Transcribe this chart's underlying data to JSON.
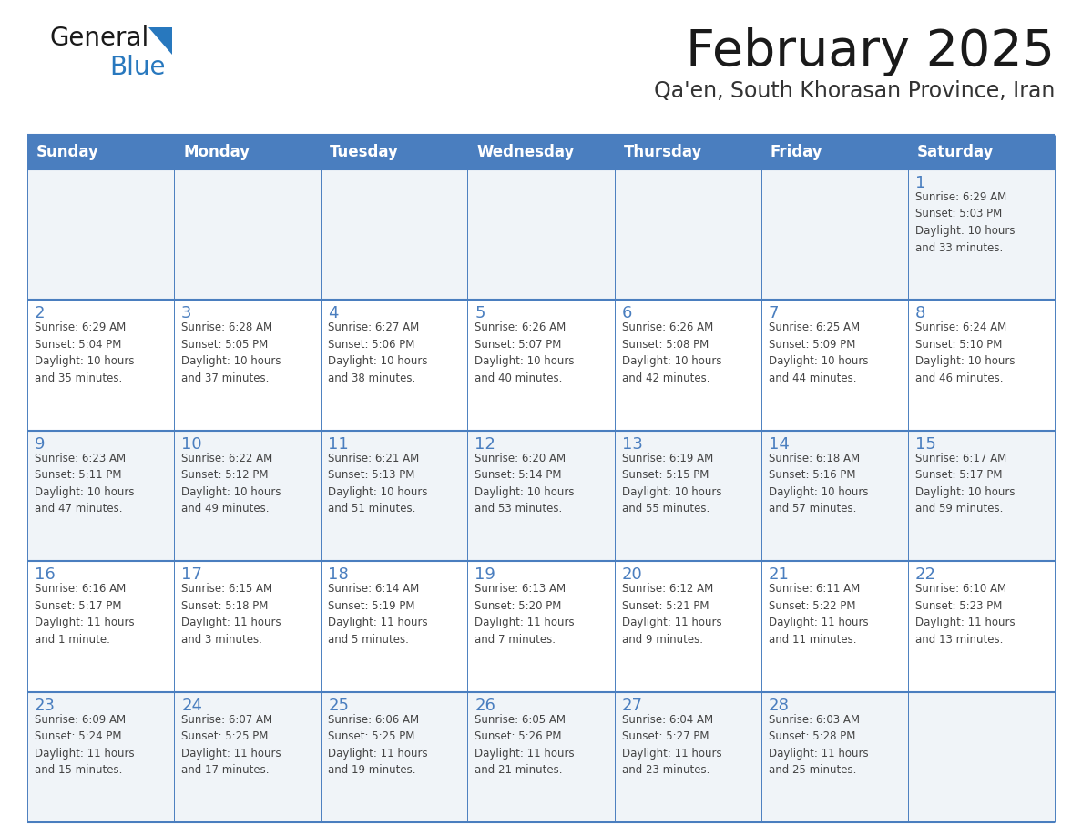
{
  "title": "February 2025",
  "subtitle": "Qa'en, South Khorasan Province, Iran",
  "header_bg": "#4a7ebf",
  "header_text_color": "#FFFFFF",
  "cell_bg_odd": "#f0f4f8",
  "cell_bg_even": "#FFFFFF",
  "border_color": "#4a7ebf",
  "day_headers": [
    "Sunday",
    "Monday",
    "Tuesday",
    "Wednesday",
    "Thursday",
    "Friday",
    "Saturday"
  ],
  "title_color": "#1a1a1a",
  "subtitle_color": "#333333",
  "day_num_color": "#4a7ebf",
  "info_color": "#444444",
  "weeks": [
    [
      {
        "day": "",
        "info": ""
      },
      {
        "day": "",
        "info": ""
      },
      {
        "day": "",
        "info": ""
      },
      {
        "day": "",
        "info": ""
      },
      {
        "day": "",
        "info": ""
      },
      {
        "day": "",
        "info": ""
      },
      {
        "day": "1",
        "info": "Sunrise: 6:29 AM\nSunset: 5:03 PM\nDaylight: 10 hours\nand 33 minutes."
      }
    ],
    [
      {
        "day": "2",
        "info": "Sunrise: 6:29 AM\nSunset: 5:04 PM\nDaylight: 10 hours\nand 35 minutes."
      },
      {
        "day": "3",
        "info": "Sunrise: 6:28 AM\nSunset: 5:05 PM\nDaylight: 10 hours\nand 37 minutes."
      },
      {
        "day": "4",
        "info": "Sunrise: 6:27 AM\nSunset: 5:06 PM\nDaylight: 10 hours\nand 38 minutes."
      },
      {
        "day": "5",
        "info": "Sunrise: 6:26 AM\nSunset: 5:07 PM\nDaylight: 10 hours\nand 40 minutes."
      },
      {
        "day": "6",
        "info": "Sunrise: 6:26 AM\nSunset: 5:08 PM\nDaylight: 10 hours\nand 42 minutes."
      },
      {
        "day": "7",
        "info": "Sunrise: 6:25 AM\nSunset: 5:09 PM\nDaylight: 10 hours\nand 44 minutes."
      },
      {
        "day": "8",
        "info": "Sunrise: 6:24 AM\nSunset: 5:10 PM\nDaylight: 10 hours\nand 46 minutes."
      }
    ],
    [
      {
        "day": "9",
        "info": "Sunrise: 6:23 AM\nSunset: 5:11 PM\nDaylight: 10 hours\nand 47 minutes."
      },
      {
        "day": "10",
        "info": "Sunrise: 6:22 AM\nSunset: 5:12 PM\nDaylight: 10 hours\nand 49 minutes."
      },
      {
        "day": "11",
        "info": "Sunrise: 6:21 AM\nSunset: 5:13 PM\nDaylight: 10 hours\nand 51 minutes."
      },
      {
        "day": "12",
        "info": "Sunrise: 6:20 AM\nSunset: 5:14 PM\nDaylight: 10 hours\nand 53 minutes."
      },
      {
        "day": "13",
        "info": "Sunrise: 6:19 AM\nSunset: 5:15 PM\nDaylight: 10 hours\nand 55 minutes."
      },
      {
        "day": "14",
        "info": "Sunrise: 6:18 AM\nSunset: 5:16 PM\nDaylight: 10 hours\nand 57 minutes."
      },
      {
        "day": "15",
        "info": "Sunrise: 6:17 AM\nSunset: 5:17 PM\nDaylight: 10 hours\nand 59 minutes."
      }
    ],
    [
      {
        "day": "16",
        "info": "Sunrise: 6:16 AM\nSunset: 5:17 PM\nDaylight: 11 hours\nand 1 minute."
      },
      {
        "day": "17",
        "info": "Sunrise: 6:15 AM\nSunset: 5:18 PM\nDaylight: 11 hours\nand 3 minutes."
      },
      {
        "day": "18",
        "info": "Sunrise: 6:14 AM\nSunset: 5:19 PM\nDaylight: 11 hours\nand 5 minutes."
      },
      {
        "day": "19",
        "info": "Sunrise: 6:13 AM\nSunset: 5:20 PM\nDaylight: 11 hours\nand 7 minutes."
      },
      {
        "day": "20",
        "info": "Sunrise: 6:12 AM\nSunset: 5:21 PM\nDaylight: 11 hours\nand 9 minutes."
      },
      {
        "day": "21",
        "info": "Sunrise: 6:11 AM\nSunset: 5:22 PM\nDaylight: 11 hours\nand 11 minutes."
      },
      {
        "day": "22",
        "info": "Sunrise: 6:10 AM\nSunset: 5:23 PM\nDaylight: 11 hours\nand 13 minutes."
      }
    ],
    [
      {
        "day": "23",
        "info": "Sunrise: 6:09 AM\nSunset: 5:24 PM\nDaylight: 11 hours\nand 15 minutes."
      },
      {
        "day": "24",
        "info": "Sunrise: 6:07 AM\nSunset: 5:25 PM\nDaylight: 11 hours\nand 17 minutes."
      },
      {
        "day": "25",
        "info": "Sunrise: 6:06 AM\nSunset: 5:25 PM\nDaylight: 11 hours\nand 19 minutes."
      },
      {
        "day": "26",
        "info": "Sunrise: 6:05 AM\nSunset: 5:26 PM\nDaylight: 11 hours\nand 21 minutes."
      },
      {
        "day": "27",
        "info": "Sunrise: 6:04 AM\nSunset: 5:27 PM\nDaylight: 11 hours\nand 23 minutes."
      },
      {
        "day": "28",
        "info": "Sunrise: 6:03 AM\nSunset: 5:28 PM\nDaylight: 11 hours\nand 25 minutes."
      },
      {
        "day": "",
        "info": ""
      }
    ]
  ]
}
